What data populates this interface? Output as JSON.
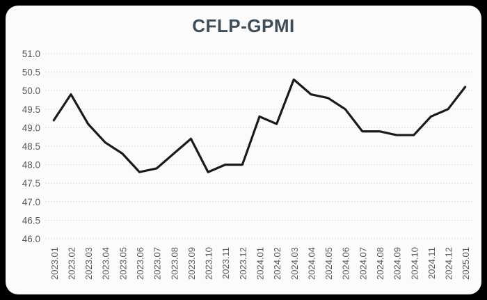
{
  "window": {
    "background_color": "#000000",
    "card_background_color": "#fbfbfb"
  },
  "chart_data": {
    "type": "line",
    "title": "CFLP-GPMI",
    "categories": [
      "2023.01",
      "2023.02",
      "2023.03",
      "2023.04",
      "2023.05",
      "2023.06",
      "2023.07",
      "2023.08",
      "2023.09",
      "2023.10",
      "2023.11",
      "2023.12",
      "2024.01",
      "2024.02",
      "2024.03",
      "2024.04",
      "2024.05",
      "2024.06",
      "2024.07",
      "2024.08",
      "2024.09",
      "2024.10",
      "2024.11",
      "2024.12",
      "2025.01"
    ],
    "series": [
      {
        "name": "CFLP-GPMI",
        "values": [
          49.2,
          49.9,
          49.1,
          48.6,
          48.3,
          47.8,
          47.9,
          48.3,
          48.7,
          47.8,
          48.0,
          48.0,
          49.3,
          49.1,
          50.3,
          49.9,
          49.8,
          49.5,
          48.9,
          48.9,
          48.8,
          48.8,
          49.3,
          49.5,
          50.1
        ]
      }
    ],
    "xlabel": "",
    "ylabel": "",
    "ylim": [
      46.0,
      51.0
    ],
    "ytick_step": 0.5,
    "ytick_labels": [
      "51.0",
      "50.5",
      "50.0",
      "49.5",
      "49.0",
      "48.5",
      "48.0",
      "47.5",
      "47.0",
      "46.5",
      "46.0"
    ],
    "grid": "horizontal-dotted",
    "legend_position": "none",
    "x_tick_rotation_degrees": 90,
    "line_color": "#1a1a1a",
    "title_color": "#3f4c55",
    "axis_label_color": "#595959",
    "gridline_color": "#d6e0e1"
  }
}
